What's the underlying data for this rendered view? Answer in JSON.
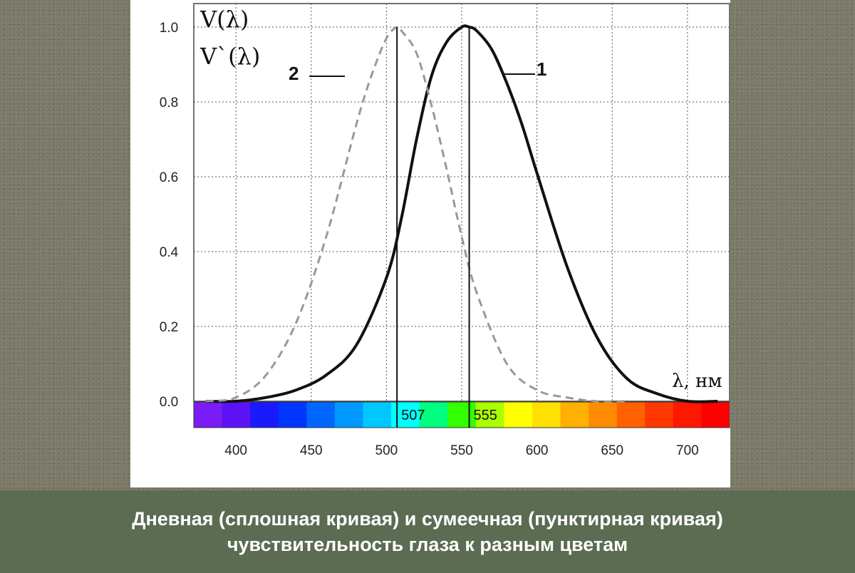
{
  "chart_data": {
    "type": "line",
    "y_axis_labels": [
      "V(λ)",
      "V`(λ)"
    ],
    "x_axis_label": "λ, нм",
    "xlim": [
      372,
      728
    ],
    "ylim": [
      0,
      1.0
    ],
    "x_ticks": [
      400,
      450,
      500,
      550,
      600,
      650,
      700
    ],
    "y_ticks": [
      0.0,
      0.2,
      0.4,
      0.6,
      0.8,
      1.0
    ],
    "y_tick_labels": [
      "0.0",
      "0.2",
      "0.4",
      "0.6",
      "0.8",
      "1.0"
    ],
    "grid": true,
    "series": [
      {
        "name": "1",
        "style": "solid",
        "color": "#111111",
        "x": [
          380,
          400,
          420,
          440,
          460,
          480,
          500,
          510,
          520,
          530,
          540,
          550,
          555,
          560,
          570,
          580,
          590,
          600,
          620,
          640,
          660,
          680,
          700,
          720
        ],
        "y": [
          0.0,
          0.0,
          0.01,
          0.03,
          0.07,
          0.15,
          0.33,
          0.49,
          0.7,
          0.87,
          0.96,
          1.0,
          1.0,
          0.99,
          0.94,
          0.85,
          0.74,
          0.61,
          0.36,
          0.17,
          0.06,
          0.02,
          0.0,
          0.0
        ]
      },
      {
        "name": "2",
        "style": "dashed",
        "color": "#999999",
        "x": [
          380,
          400,
          420,
          440,
          460,
          480,
          490,
          500,
          507,
          510,
          520,
          530,
          540,
          550,
          560,
          580,
          600,
          620,
          640,
          660
        ],
        "y": [
          0.0,
          0.01,
          0.07,
          0.21,
          0.44,
          0.74,
          0.87,
          0.97,
          1.0,
          0.99,
          0.93,
          0.79,
          0.62,
          0.44,
          0.29,
          0.1,
          0.03,
          0.01,
          0.0,
          0.0
        ]
      }
    ],
    "vertical_markers": [
      507,
      555
    ],
    "spectrum_labels": [
      "507",
      "555"
    ],
    "spectrum_colors": [
      "#7a1cf6",
      "#5c12f4",
      "#1a1aff",
      "#0034ff",
      "#0066ff",
      "#0099ff",
      "#00c8ff",
      "#00ffff",
      "#00ff80",
      "#33ff00",
      "#aaff00",
      "#ffff00",
      "#ffe000",
      "#ffb000",
      "#ff8c00",
      "#ff6000",
      "#ff3800",
      "#ff1800",
      "#ff0000"
    ]
  },
  "caption": {
    "line1": "Дневная (сплошная кривая) и сумеечная (пунктирная кривая)",
    "line2": "чувствительность глаза к разным цветам"
  }
}
